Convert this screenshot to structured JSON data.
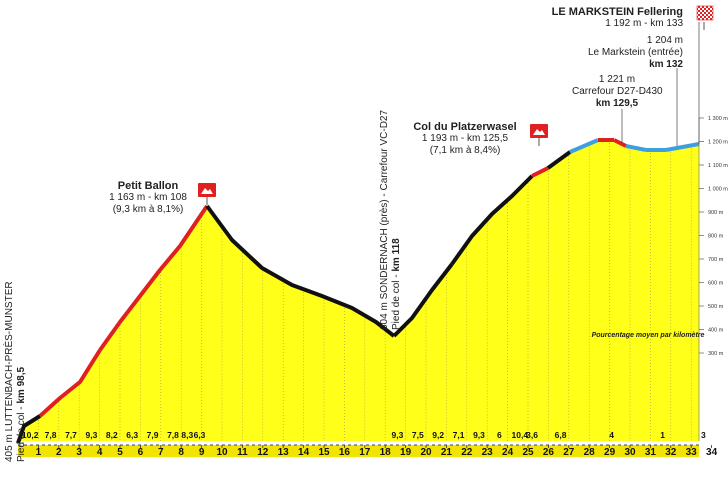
{
  "profile": {
    "km_labels": [
      "1",
      "2",
      "3",
      "4",
      "5",
      "6",
      "7",
      "8",
      "9",
      "10",
      "11",
      "12",
      "13",
      "14",
      "15",
      "16",
      "17",
      "18",
      "19",
      "20",
      "21",
      "22",
      "23",
      "24",
      "25",
      "26",
      "27",
      "28",
      "29",
      "30",
      "31",
      "32",
      "33",
      "34"
    ],
    "gradients": [
      {
        "km": 1,
        "label": "10,2"
      },
      {
        "km": 2,
        "label": "7,8"
      },
      {
        "km": 3,
        "label": "7,7"
      },
      {
        "km": 4,
        "label": "9,3"
      },
      {
        "km": 5,
        "label": "8,2"
      },
      {
        "km": 6,
        "label": "6,3"
      },
      {
        "km": 7,
        "label": "7,9"
      },
      {
        "km": 8,
        "label": "7,8"
      },
      {
        "km": 8.7,
        "label": "8,3"
      },
      {
        "km": 9.3,
        "label": "6,3"
      },
      {
        "km": 19,
        "label": "9,3"
      },
      {
        "km": 20,
        "label": "7,5"
      },
      {
        "km": 21,
        "label": "9,2"
      },
      {
        "km": 22,
        "label": "7,1"
      },
      {
        "km": 23,
        "label": "9,3"
      },
      {
        "km": 24,
        "label": "6"
      },
      {
        "km": 25,
        "label": "10,4"
      },
      {
        "km": 25.6,
        "label": "3,6"
      },
      {
        "km": 27,
        "label": "6,8"
      },
      {
        "km": 29.5,
        "label": "4"
      },
      {
        "km": 32,
        "label": "1"
      },
      {
        "km": 34,
        "label": "3"
      }
    ],
    "alt_ticks": [
      "300 m",
      "400 m",
      "500 m",
      "600 m",
      "700 m",
      "800 m",
      "900 m",
      "1 000 m",
      "1 100 m",
      "1 200 m",
      "1 300 m"
    ],
    "legend_note": "Pourcentage moyen par kilomètre"
  },
  "annotations": {
    "start": {
      "line1": "405 m LUTTENBACH-PRÈS-MUNSTER",
      "line2_prefix": "Pied de col - ",
      "line2_bold": "km 98,5"
    },
    "petit_ballon": {
      "name": "Petit Ballon",
      "line1": "1 163 m - km 108",
      "line2": "(9,3 km à 8,1%)"
    },
    "sondernach": {
      "line1": "604 m SONDERNACH (près) - Carrefour VC-D27",
      "line2_prefix": "Pied de col - ",
      "line2_bold": "km 118"
    },
    "platzerwasel": {
      "name": "Col du Platzerwasel",
      "line1": "1 193 m - km 125,5",
      "line2": "(7,1 km à 8,4%)"
    },
    "carrefour": {
      "line1": "1 221 m",
      "line2": "Carrefour D27-D430",
      "line3": "km 129,5"
    },
    "markstein_entree": {
      "line1": "1 204 m",
      "line2": "Le Markstein (entrée)",
      "line3": "km 132"
    },
    "finish": {
      "name": "LE MARKSTEIN Fellering",
      "line1": "1 192 m - km 133"
    }
  },
  "colors": {
    "fill": "#ffff1a",
    "road_red": "#e02020",
    "road_black": "#111111",
    "road_blue": "#3d9ee0",
    "km_band": "#f0e400",
    "flag_red": "#e02020"
  }
}
